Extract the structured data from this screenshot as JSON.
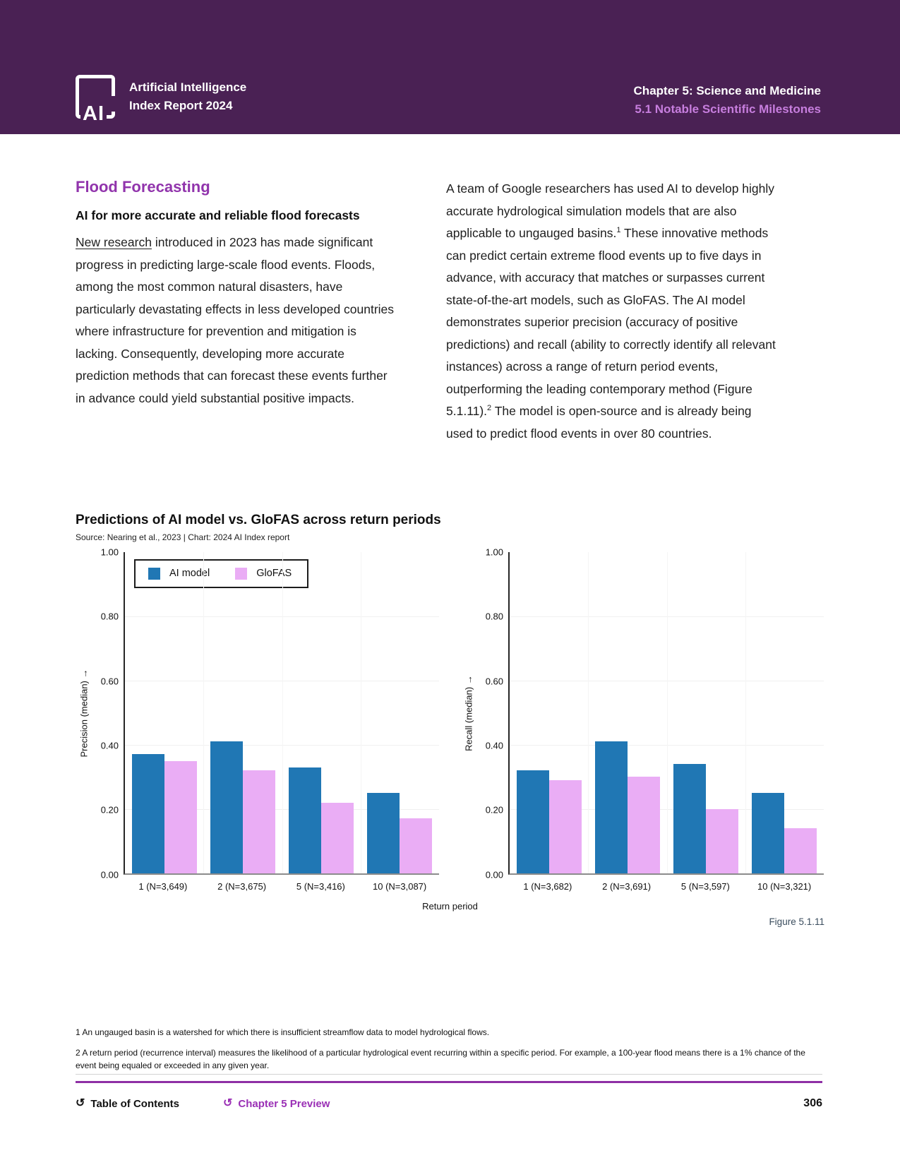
{
  "colors": {
    "header_bg": "#4a2154",
    "header_section_text": "#c77ede",
    "heading_purple": "#9134ac",
    "footer_link_purple": "#9a2fb5",
    "rule_purple": "#8e2fa5",
    "ai_model_blue": "#2077b4",
    "glofas_pink": "#eaadf5"
  },
  "header": {
    "logo_mark": "AI",
    "logo_line1": "Artificial Intelligence",
    "logo_line2": "Index Report 2024",
    "chapter": "Chapter 5: Science and Medicine",
    "section": "5.1 Notable Scientific Milestones"
  },
  "article": {
    "heading": "Flood Forecasting",
    "subheading": "AI for more accurate and reliable flood forecasts",
    "p1_link": "New research",
    "p1_rest": " introduced in 2023 has made significant progress in predicting large-scale flood events. Floods, among the most common natural disasters, have particularly devastating effects in less developed countries where infrastructure for prevention and mitigation is lacking. Consequently, developing more accurate prediction methods that can forecast these events further in advance could yield substantial positive impacts.",
    "p2_s1": "A team of Google researchers has used AI to develop highly accurate hydrological simulation models that are also applicable to ungauged basins.",
    "p2_sup1": "1",
    "p2_s2": " These innovative methods can predict certain extreme flood events up to five days in advance, with accuracy that matches or surpasses current state-of-the-art models, such as GloFAS. The AI model demonstrates superior precision (accuracy of positive predictions) and recall (ability to correctly identify all relevant instances) across a range of return period events, outperforming the leading contemporary method (Figure 5.1.11).",
    "p2_sup2": "2",
    "p2_s3": " The model is open-source and is already being used to predict flood events in over 80 countries."
  },
  "figure": {
    "title": "Predictions of AI model vs. GloFAS across return periods",
    "source": "Source: Nearing et al., 2023 | Chart: 2024 AI Index report",
    "xlabel": "Return period",
    "figure_label": "Figure 5.1.11",
    "legend": [
      "AI model",
      "GloFAS"
    ]
  },
  "chart_data": [
    {
      "type": "bar",
      "panel": "Precision",
      "ylabel": "Precision (median) ↑",
      "xlabel": "Return period",
      "ylim": [
        0,
        1
      ],
      "grid": true,
      "legend_position": "top-left",
      "yticks": [
        "1.00",
        "0.80",
        "0.60",
        "0.40",
        "0.20",
        "0.00"
      ],
      "categories": [
        "1 (N=3,649)",
        "2 (N=3,675)",
        "5 (N=3,416)",
        "10 (N=3,087)"
      ],
      "series": [
        {
          "name": "AI model",
          "color": "#2077b4",
          "values": [
            0.37,
            0.41,
            0.33,
            0.25
          ]
        },
        {
          "name": "GloFAS",
          "color": "#eaadf5",
          "values": [
            0.35,
            0.32,
            0.22,
            0.17
          ]
        }
      ]
    },
    {
      "type": "bar",
      "panel": "Recall",
      "ylabel": "Recall (median) ↑",
      "xlabel": "Return period",
      "ylim": [
        0,
        1
      ],
      "grid": true,
      "yticks": [
        "1.00",
        "0.80",
        "0.60",
        "0.40",
        "0.20",
        "0.00"
      ],
      "categories": [
        "1 (N=3,682)",
        "2 (N=3,691)",
        "5 (N=3,597)",
        "10 (N=3,321)"
      ],
      "series": [
        {
          "name": "AI model",
          "color": "#2077b4",
          "values": [
            0.32,
            0.41,
            0.34,
            0.25
          ]
        },
        {
          "name": "GloFAS",
          "color": "#eaadf5",
          "values": [
            0.29,
            0.3,
            0.2,
            0.14
          ]
        }
      ]
    }
  ],
  "footnotes": {
    "fn1": "1 An ungauged basin is a watershed for which there is insufficient streamflow data to model hydrological flows.",
    "fn2": "2 A return period (recurrence interval) measures the likelihood of a particular hydrological event recurring within a specific period. For example, a 100-year flood means there is a 1% chance of the event being equaled or exceeded in any given year."
  },
  "footer": {
    "return_icon": "↺",
    "toc_label": "Table of Contents",
    "preview_label": "Chapter 5 Preview",
    "page_number": "306"
  }
}
